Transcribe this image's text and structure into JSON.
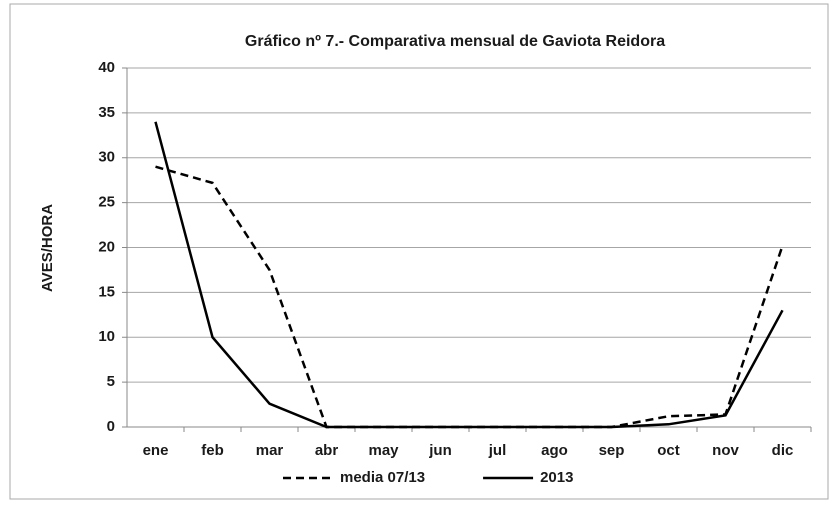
{
  "chart_data": {
    "type": "line",
    "title": "Gráfico nº 7.- Comparativa mensual de Gaviota Reidora",
    "y_label": "AVES/HORA",
    "categories": [
      "ene",
      "feb",
      "mar",
      "abr",
      "may",
      "jun",
      "jul",
      "ago",
      "sep",
      "oct",
      "nov",
      "dic"
    ],
    "series": [
      {
        "name": "media 07/13",
        "color": "#000000",
        "dashed": true,
        "values": [
          29,
          27.2,
          17.5,
          0,
          0,
          0,
          0,
          0,
          0,
          1.2,
          1.4,
          20.2
        ]
      },
      {
        "name": "2013",
        "color": "#000000",
        "dashed": false,
        "values": [
          34,
          10,
          2.6,
          0,
          0,
          0,
          0,
          0,
          0,
          0.3,
          1.3,
          13
        ]
      }
    ],
    "ylim": [
      0,
      40
    ],
    "yticks": [
      0,
      5,
      10,
      15,
      20,
      25,
      30,
      35,
      40
    ],
    "grid": true,
    "legend": "bottom"
  }
}
